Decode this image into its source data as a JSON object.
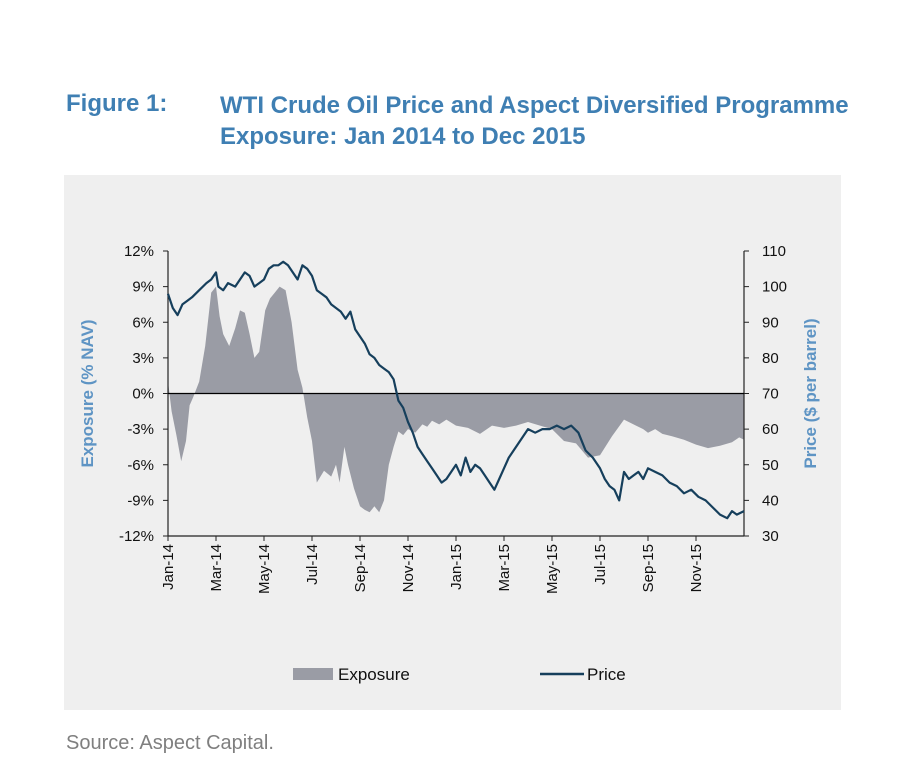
{
  "figure_label": "Figure 1:",
  "figure_title": "WTI Crude Oil Price and Aspect Diversified Programme Exposure: Jan 2014 to Dec 2015",
  "source": "Source: Aspect Capital.",
  "chart_data": {
    "type": "area+line",
    "title": "WTI Crude Oil Price and Aspect Diversified Programme Exposure: Jan 2014 to Dec 2015",
    "ylabel_left": "Exposure (% NAV)",
    "ylabel_right": "Price ($ per barrel)",
    "ylim_left": [
      -12,
      12
    ],
    "ylim_right": [
      30,
      110
    ],
    "yticks_left": [
      "12%",
      "9%",
      "6%",
      "3%",
      "0%",
      "-3%",
      "-6%",
      "-9%",
      "-12%"
    ],
    "yticks_right": [
      "110",
      "100",
      "90",
      "80",
      "70",
      "60",
      "50",
      "40",
      "30"
    ],
    "x_tick_labels": [
      "Jan-14",
      "Mar-14",
      "May-14",
      "Jul-14",
      "Sep-14",
      "Nov-14",
      "Jan-15",
      "Mar-15",
      "May-15",
      "Jul-15",
      "Sep-15",
      "Nov-15"
    ],
    "x_range_months": [
      0,
      24
    ],
    "legend": [
      "Exposure",
      "Price"
    ],
    "legend_position": "bottom",
    "colors": {
      "exposure": "#9a9ca5",
      "price": "#163f5c",
      "title": "#3f7fb3",
      "axis_label": "#5e94c4"
    },
    "series": [
      {
        "name": "Exposure",
        "axis": "left",
        "x": [
          0,
          0.15,
          0.35,
          0.55,
          0.75,
          0.9,
          1.05,
          1.3,
          1.55,
          1.8,
          2.0,
          2.15,
          2.3,
          2.55,
          2.8,
          3.0,
          3.2,
          3.4,
          3.6,
          3.8,
          4.05,
          4.25,
          4.45,
          4.65,
          4.9,
          5.15,
          5.4,
          5.6,
          5.8,
          6.0,
          6.2,
          6.5,
          6.8,
          7.0,
          7.15,
          7.35,
          7.5,
          7.75,
          8.0,
          8.2,
          8.4,
          8.6,
          8.8,
          9.0,
          9.2,
          9.4,
          9.6,
          9.8,
          10.0,
          10.3,
          10.6,
          10.8,
          11.0,
          11.3,
          11.6,
          12.0,
          12.5,
          13.0,
          13.5,
          14.0,
          14.5,
          15.0,
          15.5,
          16.0,
          16.5,
          17.0,
          17.5,
          18.0,
          18.5,
          19.0,
          19.5,
          19.8,
          20.0,
          20.3,
          20.6,
          21.0,
          21.5,
          22.0,
          22.5,
          23.0,
          23.5,
          23.8,
          24.0
        ],
        "values": [
          1.0,
          -1.5,
          -3.5,
          -5.7,
          -4.0,
          -1.0,
          -0.3,
          1.0,
          4.0,
          8.5,
          9.0,
          6.5,
          5.0,
          4.0,
          5.5,
          7.0,
          6.8,
          5.0,
          3.0,
          3.5,
          7.0,
          8.0,
          8.5,
          9.0,
          8.7,
          6.0,
          2.0,
          0.5,
          -2.0,
          -4.0,
          -7.5,
          -6.5,
          -7.0,
          -6.0,
          -7.5,
          -4.5,
          -6.0,
          -8.0,
          -9.5,
          -9.8,
          -10.0,
          -9.5,
          -10.0,
          -9.0,
          -6.0,
          -4.5,
          -3.2,
          -3.5,
          -3.0,
          -3.3,
          -2.6,
          -2.8,
          -2.3,
          -2.6,
          -2.2,
          -2.7,
          -2.9,
          -3.4,
          -2.7,
          -2.9,
          -2.7,
          -2.4,
          -2.7,
          -3.0,
          -4.0,
          -4.2,
          -5.4,
          -5.2,
          -3.6,
          -2.2,
          -2.7,
          -3.0,
          -3.3,
          -3.0,
          -3.4,
          -3.6,
          -3.9,
          -4.3,
          -4.6,
          -4.4,
          -4.1,
          -3.7,
          -3.9
        ]
      },
      {
        "name": "Price",
        "axis": "right",
        "x": [
          0,
          0.2,
          0.4,
          0.6,
          0.8,
          1.0,
          1.3,
          1.6,
          1.8,
          2.0,
          2.1,
          2.3,
          2.5,
          2.8,
          3.0,
          3.2,
          3.4,
          3.6,
          3.8,
          4.0,
          4.2,
          4.4,
          4.6,
          4.8,
          5.0,
          5.2,
          5.4,
          5.6,
          5.8,
          6.0,
          6.2,
          6.4,
          6.6,
          6.8,
          7.0,
          7.2,
          7.4,
          7.6,
          7.8,
          8.0,
          8.2,
          8.4,
          8.6,
          8.8,
          9.0,
          9.2,
          9.4,
          9.6,
          9.8,
          10.0,
          10.2,
          10.4,
          10.6,
          10.8,
          11.0,
          11.2,
          11.4,
          11.6,
          11.8,
          12.0,
          12.2,
          12.4,
          12.6,
          12.8,
          13.0,
          13.2,
          13.4,
          13.6,
          13.8,
          14.0,
          14.2,
          14.4,
          14.6,
          14.8,
          15.0,
          15.3,
          15.6,
          15.9,
          16.2,
          16.5,
          16.8,
          17.1,
          17.4,
          17.7,
          18.0,
          18.2,
          18.4,
          18.6,
          18.8,
          19.0,
          19.2,
          19.4,
          19.6,
          19.8,
          20.0,
          20.3,
          20.6,
          20.9,
          21.2,
          21.5,
          21.8,
          22.1,
          22.4,
          22.7,
          23.0,
          23.3,
          23.5,
          23.7,
          24.0
        ],
        "values": [
          98,
          94,
          92,
          95,
          96,
          97,
          99,
          101,
          102,
          104,
          100,
          99,
          101,
          100,
          102,
          104,
          103,
          100,
          101,
          102,
          105,
          106,
          106,
          107,
          106,
          104,
          102,
          106,
          105,
          103,
          99,
          98,
          97,
          95,
          94,
          93,
          91,
          93,
          88,
          86,
          84,
          81,
          80,
          78,
          77,
          76,
          74,
          68,
          66,
          62,
          59,
          55,
          53,
          51,
          49,
          47,
          45,
          46,
          48,
          50,
          47,
          52,
          48,
          50,
          49,
          47,
          45,
          43,
          46,
          49,
          52,
          54,
          56,
          58,
          60,
          59,
          60,
          60,
          61,
          60,
          61,
          59,
          54,
          52,
          49,
          46,
          44,
          43,
          40,
          48,
          46,
          47,
          48,
          46,
          49,
          48,
          47,
          45,
          44,
          42,
          43,
          41,
          40,
          38,
          36,
          35,
          37,
          36,
          37
        ]
      }
    ]
  }
}
